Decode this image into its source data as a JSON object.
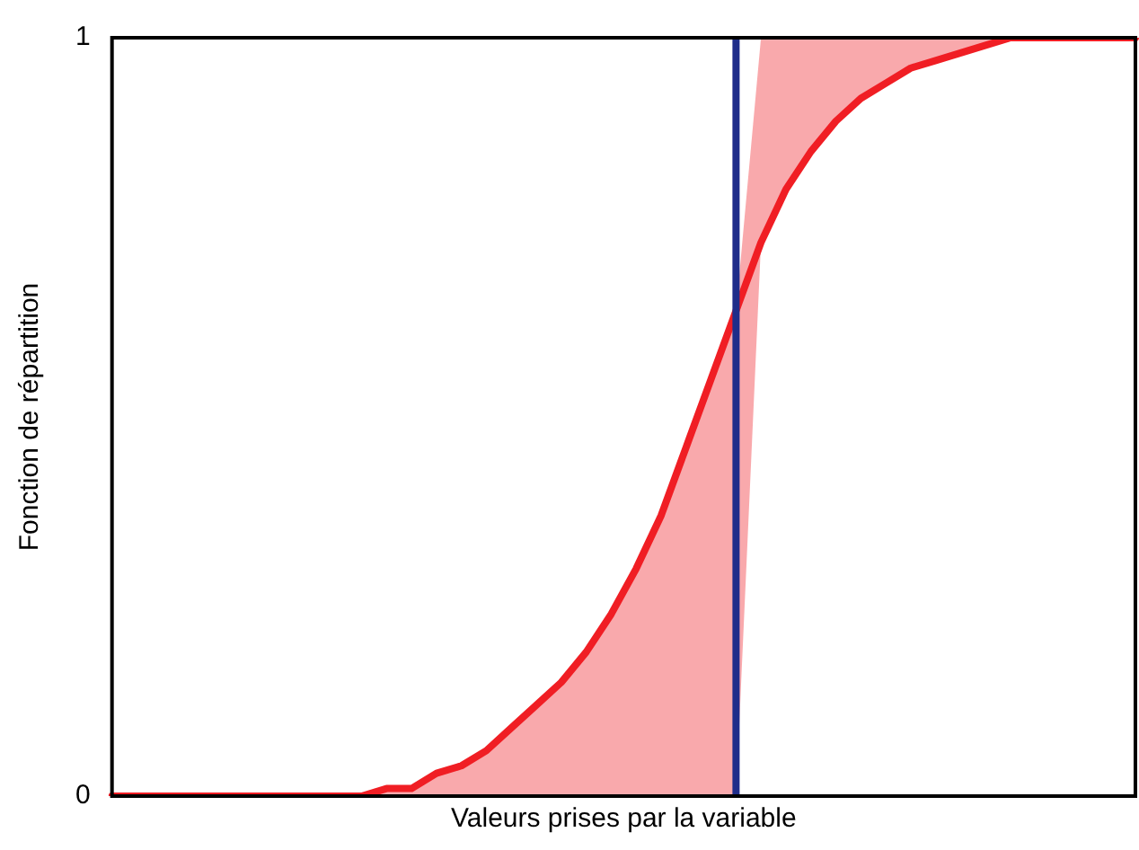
{
  "chart_data": {
    "type": "line",
    "xlabel": "Valeurs prises par la variable",
    "ylabel": "Fonction de répartition",
    "categories": [
      null,
      null,
      null,
      null,
      null,
      null,
      null,
      null,
      null,
      null,
      null,
      null,
      null,
      null,
      null,
      null,
      null,
      null,
      null,
      null,
      null,
      null,
      null,
      null,
      null,
      null,
      null,
      null,
      null,
      null,
      null,
      null,
      null,
      null,
      null,
      null,
      null,
      null,
      null,
      null,
      null,
      null
    ],
    "ylim": [
      0,
      1
    ],
    "yticks": [
      0,
      1
    ],
    "tick_labels": "y",
    "grid": false,
    "legend": false,
    "marker": "none",
    "line_style": "solid",
    "series": [
      {
        "color": "#f01e24",
        "values": [
          0,
          0,
          0,
          0,
          0,
          0,
          0,
          0,
          0,
          0,
          0,
          0.01,
          0.01,
          0.03,
          0.04,
          0.06,
          0.09,
          0.12,
          0.15,
          0.19,
          0.24,
          0.3,
          0.37,
          0.46,
          0.55,
          0.64,
          0.73,
          0.8,
          0.85,
          0.89,
          0.92,
          0.94,
          0.96,
          0.97,
          0.98,
          0.99,
          1,
          1,
          1,
          1,
          1,
          1
        ],
        "lower": [
          0,
          0,
          0,
          0,
          0,
          0,
          0,
          0,
          0,
          0,
          0,
          0,
          0,
          0,
          0,
          0,
          0,
          0,
          0,
          0,
          0,
          0,
          0,
          0,
          0,
          0,
          0.73,
          0.8,
          0.85,
          0.89,
          0.92,
          0.94,
          0.96,
          0.97,
          0.98,
          0.99,
          1,
          1,
          1,
          1,
          1,
          1
        ],
        "upper": [
          0,
          0,
          0,
          0,
          0,
          0,
          0,
          0,
          0,
          0,
          0,
          0.01,
          0.01,
          0.03,
          0.04,
          0.06,
          0.09,
          0.12,
          0.15,
          0.19,
          0.24,
          0.3,
          0.37,
          0.46,
          0.55,
          0.64,
          1,
          1,
          1,
          1,
          1,
          1,
          1,
          1,
          1,
          1,
          1,
          1,
          1,
          1,
          1,
          1
        ]
      }
    ],
    "ref_lines": [
      {
        "axis": "x",
        "color": "#1f2d8a",
        "line_style": "solid"
      }
    ]
  }
}
